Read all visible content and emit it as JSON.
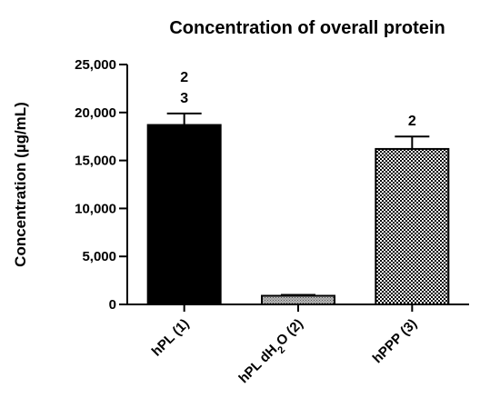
{
  "chart_data": {
    "type": "bar",
    "title": "Concentration of overall protein",
    "ylabel": "Concentration (µg/mL)",
    "xlabel": "",
    "ylim": [
      0,
      25000
    ],
    "yticks": [
      0,
      5000,
      10000,
      15000,
      20000,
      25000
    ],
    "ytick_labels": [
      "0",
      "5,000",
      "10,000",
      "15,000",
      "20,000",
      "25,000"
    ],
    "categories": [
      "hPL (1)",
      "hPL dH2O (2)",
      "hPPP (3)"
    ],
    "category_label_parts": [
      [
        {
          "t": "hPL (1)",
          "sub": false
        }
      ],
      [
        {
          "t": "hPL dH",
          "sub": false
        },
        {
          "t": "2",
          "sub": true
        },
        {
          "t": "O (2)",
          "sub": false
        }
      ],
      [
        {
          "t": "hPPP (3)",
          "sub": false
        }
      ]
    ],
    "values": [
      18700,
      900,
      16200
    ],
    "errors": [
      1200,
      100,
      1300
    ],
    "fills": [
      "solid-black",
      "dotted-gray",
      "checkered"
    ],
    "annotations": [
      [
        "2",
        "3"
      ],
      [],
      [
        "2"
      ]
    ],
    "grid": false
  }
}
